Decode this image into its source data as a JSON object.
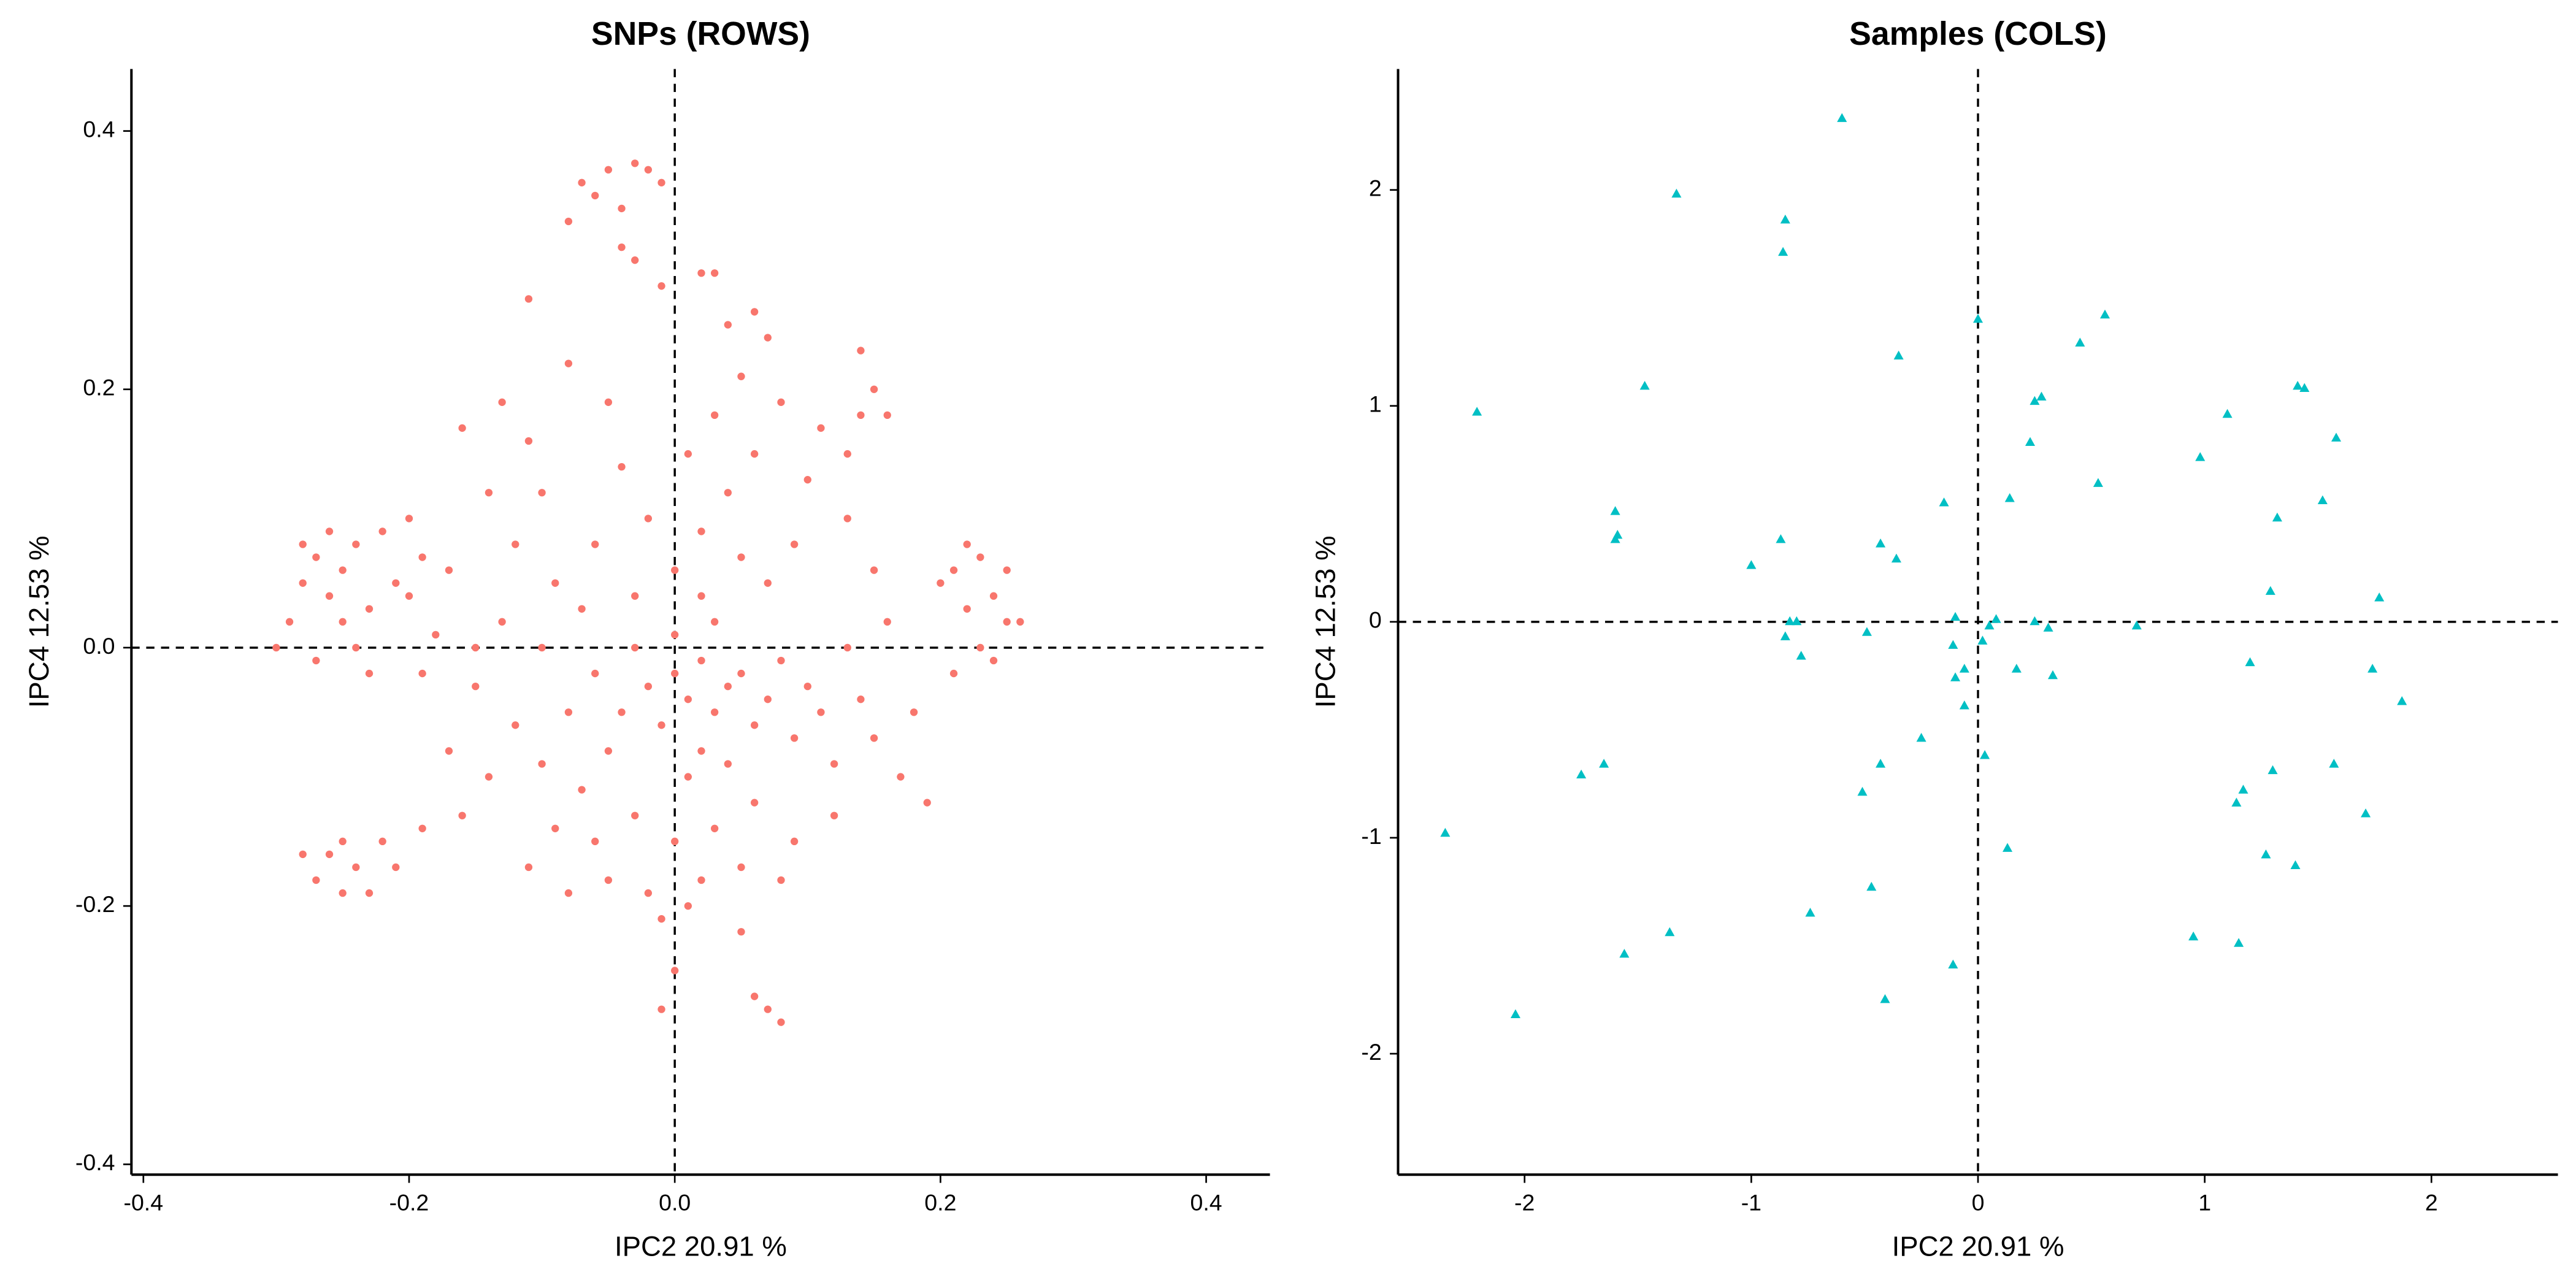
{
  "chart_data": [
    {
      "type": "scatter",
      "title": "SNPs (ROWS)",
      "x_label": "IPC2 20.91 %",
      "y_label": "IPC4 12.53 %",
      "color": "#F8766D",
      "marker": "circle",
      "xlim": [
        -0.409,
        0.448
      ],
      "ylim": [
        -0.408,
        0.448
      ],
      "xticks": [
        -0.4,
        -0.2,
        {
          "value": 0,
          "label": "0.0"
        },
        0.2,
        0.4
      ],
      "yticks": [
        -0.4,
        -0.2,
        {
          "value": 0,
          "label": "0.0"
        },
        0.2,
        0.4
      ],
      "hline": 0,
      "vline": 0,
      "x": [
        -0.07,
        -0.05,
        -0.03,
        -0.02,
        -0.06,
        -0.04,
        -0.08,
        -0.01,
        -0.04,
        -0.03,
        -0.01,
        0.02,
        0.03,
        -0.28,
        -0.27,
        -0.26,
        -0.25,
        -0.24,
        -0.23,
        -0.29,
        -0.3,
        -0.27,
        -0.25,
        -0.22,
        -0.21,
        -0.26,
        -0.24,
        -0.28,
        -0.23,
        -0.2,
        -0.19,
        -0.27,
        -0.26,
        -0.25,
        -0.24,
        -0.23,
        -0.22,
        -0.28,
        -0.25,
        -0.21,
        -0.19,
        0.21,
        0.22,
        0.23,
        0.24,
        0.25,
        0.23,
        0.22,
        0.25,
        0.26,
        0.24,
        0.2,
        0.21,
        0,
        0.01,
        0.02,
        0.03,
        0.04,
        -0.01,
        -0.02,
        0.05,
        0.06,
        0.02,
        0,
        0.03,
        -0.03,
        0.07,
        0.08,
        -0.04,
        0.01,
        0.04,
        -0.05,
        0.09,
        0.1,
        0.11,
        -0.06,
        -0.07,
        0.12,
        0.14,
        0.15,
        0.13,
        -0.08,
        -0.1,
        -0.12,
        -0.09,
        -0.11,
        -0.06,
        -0.03,
        0,
        0.03,
        0.06,
        0.09,
        0.12,
        0.02,
        -0.02,
        0.05,
        -0.05,
        -0.08,
        0.08,
        0.17,
        0.18,
        0.16,
        0.19,
        -0.14,
        -0.15,
        -0.13,
        -0.16,
        -0.17,
        -0.18,
        -0.01,
        0.01,
        0,
        0.02,
        0.04,
        0.06,
        0.03,
        0.05,
        0.07,
        0.08,
        0.1,
        0.09,
        0.11,
        0.13,
        0.14,
        0.15,
        -0.02,
        -0.04,
        -0.06,
        -0.05,
        -0.08,
        -0.1,
        -0.09,
        -0.11,
        -0.07,
        0.01,
        0.04,
        0.06,
        0.14,
        0.15,
        0.16,
        0.13,
        -0.03,
        0.02,
        0.07,
        0.05,
        -0.12,
        -0.14,
        -0.16,
        -0.17,
        -0.2,
        -0.15,
        -0.19,
        -0.1,
        -0.13,
        -0.11,
        0.05,
        0.06,
        0.07,
        0.08,
        0,
        -0.01
      ],
      "y": [
        0.36,
        0.37,
        0.375,
        0.37,
        0.35,
        0.34,
        0.33,
        0.36,
        0.31,
        0.3,
        0.28,
        0.29,
        0.29,
        0.05,
        0.07,
        0.04,
        0.06,
        0.08,
        0.03,
        0.02,
        0,
        -0.01,
        0.02,
        0.09,
        0.05,
        0.09,
        0,
        0.08,
        -0.02,
        0.04,
        0.07,
        -0.18,
        -0.16,
        -0.19,
        -0.17,
        -0.19,
        -0.15,
        -0.16,
        -0.15,
        -0.17,
        -0.14,
        0.06,
        0.03,
        0.07,
        0.04,
        0.02,
        0,
        0.08,
        0.06,
        0.02,
        -0.01,
        0.05,
        -0.02,
        -0.02,
        -0.04,
        -0.01,
        -0.05,
        -0.03,
        -0.06,
        -0.03,
        -0.02,
        -0.06,
        -0.08,
        0.01,
        0.02,
        0,
        -0.04,
        -0.01,
        -0.05,
        -0.1,
        -0.09,
        -0.08,
        -0.07,
        -0.03,
        -0.05,
        -0.02,
        -0.11,
        -0.09,
        -0.04,
        -0.07,
        0,
        -0.05,
        -0.09,
        -0.06,
        -0.14,
        -0.17,
        -0.15,
        -0.13,
        -0.15,
        -0.14,
        -0.12,
        -0.15,
        -0.13,
        -0.18,
        -0.19,
        -0.17,
        -0.18,
        -0.19,
        -0.18,
        -0.1,
        -0.05,
        0.02,
        -0.12,
        -0.1,
        -0.03,
        0.02,
        -0.13,
        -0.08,
        0.01,
        -0.21,
        -0.2,
        0.06,
        0.09,
        0.12,
        0.15,
        0.18,
        0.21,
        0.24,
        0.19,
        0.13,
        0.08,
        0.17,
        0.1,
        0.18,
        0.06,
        0.1,
        0.14,
        0.08,
        0.19,
        0.22,
        0.12,
        0.05,
        0.16,
        0.03,
        0.15,
        0.25,
        0.26,
        0.23,
        0.2,
        0.18,
        0.15,
        0.04,
        0.04,
        0.05,
        0.07,
        0.08,
        0.12,
        0.17,
        0.06,
        0.1,
        0,
        -0.02,
        0,
        0.19,
        0.27,
        -0.22,
        -0.27,
        -0.28,
        -0.29,
        -0.25,
        -0.28
      ]
    },
    {
      "type": "scatter",
      "title": "Samples (COLS)",
      "x_label": "IPC2 20.91 %",
      "y_label": "IPC4 12.53 %",
      "color": "#00BFC4",
      "marker": "triangle",
      "xlim": [
        -2.558,
        2.558
      ],
      "ylim": [
        -2.56,
        2.56
      ],
      "xticks": [
        -2,
        -1,
        0,
        1,
        2
      ],
      "yticks": [
        -2,
        -1,
        0,
        1,
        2
      ],
      "hline": 0,
      "vline": 0,
      "x": [
        -0.6,
        -1.33,
        -0.85,
        -0.86,
        0,
        0.56,
        0.45,
        -0.35,
        0.28,
        0.25,
        -1.47,
        -2.21,
        1.41,
        1.44,
        1.1,
        0.98,
        1.58,
        0.23,
        -1.6,
        -1.59,
        -1.6,
        0.53,
        0.14,
        1.52,
        -0.15,
        1.32,
        -0.87,
        -0.43,
        -0.36,
        -1,
        1.29,
        1.77,
        -0.1,
        0.08,
        0.05,
        -0.83,
        -0.8,
        0.25,
        0.31,
        0.7,
        -0.49,
        -0.85,
        -0.11,
        0.02,
        -0.78,
        1.2,
        -0.06,
        0.17,
        0.33,
        -0.1,
        1.74,
        1.87,
        -0.06,
        -0.25,
        0.03,
        -0.43,
        1.57,
        -1.75,
        1.3,
        -1.65,
        -0.51,
        1.17,
        1.14,
        1.71,
        -2.35,
        0.13,
        1.27,
        1.4,
        -0.47,
        -0.74,
        -1.36,
        0.95,
        1.15,
        -1.56,
        -0.11,
        -0.41,
        -2.04
      ],
      "y": [
        2.33,
        1.98,
        1.86,
        1.71,
        1.4,
        1.42,
        1.29,
        1.23,
        1.04,
        1.02,
        1.09,
        0.97,
        1.09,
        1.08,
        0.96,
        0.76,
        0.85,
        0.83,
        0.51,
        0.4,
        0.38,
        0.64,
        0.57,
        0.56,
        0.55,
        0.48,
        0.38,
        0.36,
        0.29,
        0.26,
        0.14,
        0.11,
        0.02,
        0.01,
        -0.02,
        0,
        0,
        0,
        -0.03,
        -0.02,
        -0.05,
        -0.07,
        -0.11,
        -0.09,
        -0.16,
        -0.19,
        -0.22,
        -0.22,
        -0.25,
        -0.26,
        -0.22,
        -0.37,
        -0.39,
        -0.54,
        -0.62,
        -0.66,
        -0.66,
        -0.71,
        -0.69,
        -0.66,
        -0.79,
        -0.78,
        -0.84,
        -0.89,
        -0.98,
        -1.05,
        -1.08,
        -1.13,
        -1.23,
        -1.35,
        -1.44,
        -1.46,
        -1.49,
        -1.54,
        -1.59,
        -1.75,
        -1.82
      ]
    }
  ]
}
